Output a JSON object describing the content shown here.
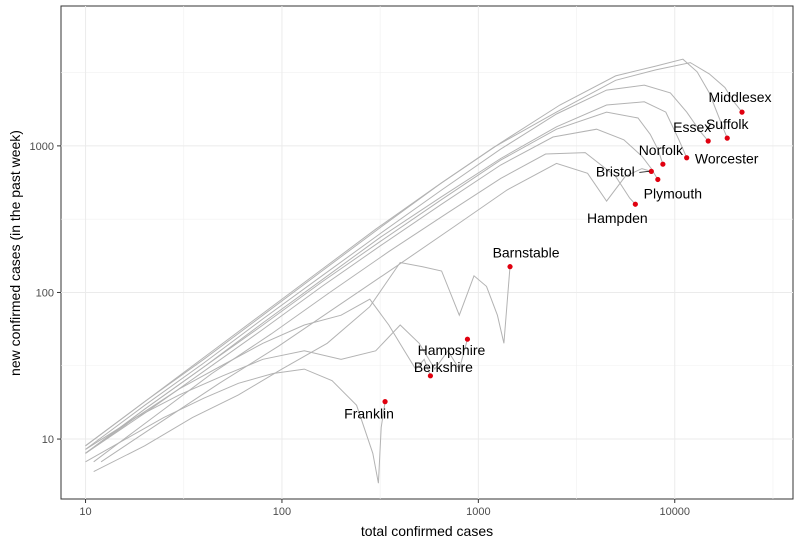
{
  "chart_data": {
    "type": "line",
    "xlabel": "total confirmed cases",
    "ylabel": "new confirmed cases (in the past week)",
    "x_scale": "log10",
    "y_scale": "log10",
    "xlim": [
      7.5,
      40000
    ],
    "ylim": [
      3.9,
      9000
    ],
    "x_ticks": [
      10,
      100,
      1000,
      10000
    ],
    "x_tick_labels": [
      "10",
      "100",
      "1000",
      "10000"
    ],
    "y_ticks": [
      10,
      100,
      1000
    ],
    "y_tick_labels": [
      "10",
      "100",
      "1000"
    ],
    "grid": true,
    "line_color": "#b3b3b3",
    "point_color": "#e0000f",
    "series": [
      {
        "name": "Middlesex",
        "x": [
          10,
          20,
          40,
          80,
          150,
          300,
          600,
          1200,
          2500,
          5000,
          8000,
          12000,
          15000,
          18000,
          20000,
          22000
        ],
        "y": [
          9,
          18,
          36,
          72,
          135,
          270,
          520,
          980,
          1700,
          2800,
          3300,
          3700,
          3100,
          2500,
          2000,
          1700
        ]
      },
      {
        "name": "Suffolk",
        "x": [
          10,
          20,
          40,
          80,
          160,
          320,
          650,
          1300,
          2600,
          5000,
          8000,
          11000,
          13000,
          15000,
          17000,
          18500
        ],
        "y": [
          9,
          18,
          35,
          70,
          140,
          280,
          560,
          1050,
          1900,
          3000,
          3500,
          3900,
          3200,
          2300,
          1500,
          1130
        ]
      },
      {
        "name": "Essex",
        "x": [
          10,
          20,
          40,
          80,
          160,
          320,
          650,
          1300,
          2500,
          4500,
          7000,
          9500,
          11500,
          13500,
          14800
        ],
        "y": [
          8.5,
          17,
          33,
          66,
          130,
          255,
          500,
          950,
          1650,
          2400,
          2600,
          2300,
          1700,
          1250,
          1080
        ]
      },
      {
        "name": "Worcester",
        "x": [
          10,
          20,
          40,
          80,
          160,
          320,
          650,
          1300,
          2500,
          4500,
          7000,
          9000,
          10500,
          11500
        ],
        "y": [
          8,
          16,
          31,
          62,
          122,
          240,
          450,
          820,
          1350,
          1900,
          2000,
          1700,
          1100,
          830
        ]
      },
      {
        "name": "Norfolk",
        "x": [
          10,
          20,
          40,
          80,
          160,
          320,
          650,
          1300,
          2500,
          4500,
          6500,
          7500,
          8200,
          8700
        ],
        "y": [
          8,
          16,
          31,
          60,
          118,
          225,
          430,
          800,
          1300,
          1700,
          1550,
          1200,
          950,
          750
        ]
      },
      {
        "name": "Bristol",
        "x": [
          12,
          24,
          48,
          96,
          190,
          380,
          750,
          1400,
          2500,
          3600,
          4500,
          5600,
          6800,
          7600
        ],
        "y": [
          7,
          13,
          24,
          43,
          80,
          150,
          280,
          500,
          760,
          650,
          420,
          620,
          700,
          670
        ]
      },
      {
        "name": "Plymouth",
        "x": [
          10,
          20,
          40,
          80,
          160,
          320,
          650,
          1300,
          2400,
          4000,
          5500,
          6800,
          7600,
          8200
        ],
        "y": [
          8,
          15,
          29,
          56,
          110,
          210,
          400,
          740,
          1150,
          1300,
          1100,
          850,
          700,
          590
        ]
      },
      {
        "name": "Hampden",
        "x": [
          11,
          22,
          44,
          88,
          175,
          350,
          700,
          1300,
          2200,
          3500,
          5000,
          5900,
          6300
        ],
        "y": [
          7,
          14,
          28,
          52,
          100,
          190,
          350,
          600,
          880,
          900,
          620,
          440,
          400
        ]
      },
      {
        "name": "Barnstable",
        "x": [
          11,
          20,
          35,
          60,
          100,
          170,
          280,
          400,
          520,
          650,
          800,
          950,
          1100,
          1250,
          1350,
          1450
        ],
        "y": [
          6,
          9,
          14,
          20,
          30,
          45,
          80,
          160,
          150,
          140,
          70,
          130,
          110,
          70,
          45,
          150
        ]
      },
      {
        "name": "Hampshire",
        "x": [
          10,
          18,
          30,
          50,
          80,
          130,
          200,
          300,
          400,
          500,
          600,
          700,
          800,
          880
        ],
        "y": [
          8,
          14,
          20,
          27,
          35,
          40,
          35,
          40,
          60,
          45,
          30,
          40,
          30,
          48
        ]
      },
      {
        "name": "Berkshire",
        "x": [
          10,
          18,
          30,
          50,
          80,
          130,
          200,
          280,
          350,
          420,
          480,
          530,
          570
        ],
        "y": [
          8.5,
          14,
          22,
          32,
          45,
          60,
          70,
          90,
          60,
          40,
          30,
          35,
          27
        ]
      },
      {
        "name": "Franklin",
        "x": [
          10,
          16,
          25,
          40,
          60,
          90,
          130,
          180,
          240,
          290,
          310,
          320,
          335
        ],
        "y": [
          7,
          10,
          14,
          19,
          24,
          28,
          30,
          25,
          17,
          8,
          5,
          12,
          18
        ]
      }
    ],
    "points": [
      {
        "name": "Middlesex",
        "x": 22000,
        "y": 1700
      },
      {
        "name": "Suffolk",
        "x": 18500,
        "y": 1130
      },
      {
        "name": "Essex",
        "x": 14800,
        "y": 1080
      },
      {
        "name": "Worcester",
        "x": 11500,
        "y": 830
      },
      {
        "name": "Norfolk",
        "x": 8700,
        "y": 750
      },
      {
        "name": "Bristol",
        "x": 7600,
        "y": 670
      },
      {
        "name": "Plymouth",
        "x": 8200,
        "y": 590
      },
      {
        "name": "Hampden",
        "x": 6300,
        "y": 400
      },
      {
        "name": "Barnstable",
        "x": 1450,
        "y": 150
      },
      {
        "name": "Hampshire",
        "x": 880,
        "y": 48
      },
      {
        "name": "Berkshire",
        "x": 570,
        "y": 27
      },
      {
        "name": "Franklin",
        "x": 335,
        "y": 18
      }
    ]
  }
}
